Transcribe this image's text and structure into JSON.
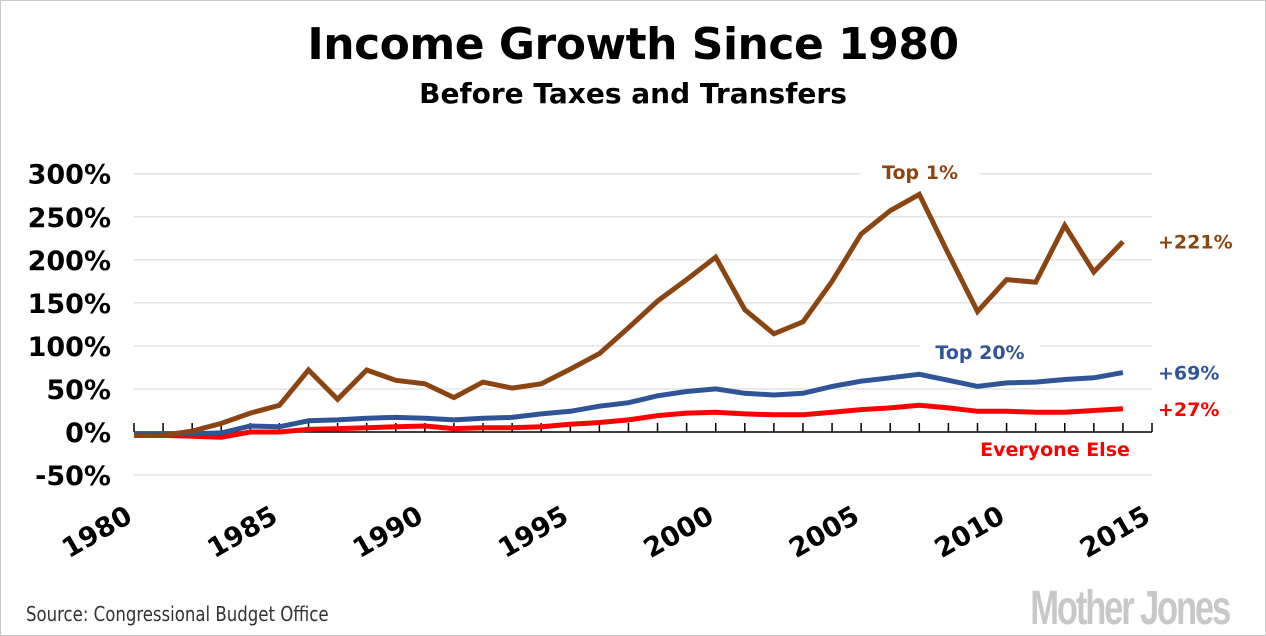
{
  "header": {
    "title": "Income Growth Since 1980",
    "subtitle": "Before Taxes and Transfers"
  },
  "footer": {
    "source": "Source: Congressional Budget Office",
    "logo": "Mother Jones"
  },
  "colors": {
    "top1": "#8B4513",
    "top20": "#2F5597",
    "everyone_else": "#FF0000",
    "grid": "#e3e3e3",
    "axis": "#000000"
  },
  "chart_data": {
    "type": "line",
    "title": "Income Growth Since 1980",
    "subtitle": "Before Taxes and Transfers",
    "xlabel": "",
    "ylabel": "",
    "x": [
      1980,
      1981,
      1982,
      1983,
      1984,
      1985,
      1986,
      1987,
      1988,
      1989,
      1990,
      1991,
      1992,
      1993,
      1994,
      1995,
      1996,
      1997,
      1998,
      1999,
      2000,
      2001,
      2002,
      2003,
      2004,
      2005,
      2006,
      2007,
      2008,
      2009,
      2010,
      2011,
      2012,
      2013,
      2014
    ],
    "xlim": [
      1980,
      2015
    ],
    "x_ticks": [
      1980,
      1985,
      1990,
      1995,
      2000,
      2005,
      2010,
      2015
    ],
    "x_tick_labels": [
      "1980",
      "1985",
      "1990",
      "1995",
      "2000",
      "2005",
      "2010",
      "2015"
    ],
    "ylim": [
      -50,
      300
    ],
    "y_ticks": [
      -50,
      0,
      50,
      100,
      150,
      200,
      250,
      300
    ],
    "y_tick_labels": [
      "-50%",
      "0%",
      "50%",
      "100%",
      "150%",
      "200%",
      "250%",
      "300%"
    ],
    "grid": true,
    "legend": "inline labels",
    "series": [
      {
        "name": "Top 1%",
        "key": "top1",
        "end_label": "+221%",
        "values": [
          -4,
          -4,
          1,
          10,
          22,
          31,
          72,
          38,
          72,
          60,
          56,
          40,
          58,
          51,
          56,
          73,
          91,
          121,
          152,
          177,
          203,
          142,
          114,
          128,
          175,
          230,
          257,
          276,
          207,
          140,
          177,
          174,
          240,
          186,
          221
        ]
      },
      {
        "name": "Top 20%",
        "key": "top20",
        "end_label": "+69%",
        "values": [
          -2,
          -2,
          -2,
          -1,
          7,
          6,
          13,
          14,
          16,
          17,
          16,
          14,
          16,
          17,
          21,
          24,
          30,
          34,
          42,
          47,
          50,
          45,
          43,
          45,
          53,
          59,
          63,
          67,
          60,
          53,
          57,
          58,
          61,
          63,
          69
        ]
      },
      {
        "name": "Everyone Else",
        "key": "everyone_else",
        "end_label": "+27%",
        "values": [
          -4,
          -4,
          -5,
          -6,
          0,
          0,
          3,
          4,
          5,
          6,
          7,
          4,
          5,
          5,
          6,
          9,
          11,
          14,
          19,
          22,
          23,
          21,
          20,
          20,
          23,
          26,
          28,
          31,
          28,
          24,
          24,
          23,
          23,
          25,
          27
        ]
      }
    ]
  }
}
